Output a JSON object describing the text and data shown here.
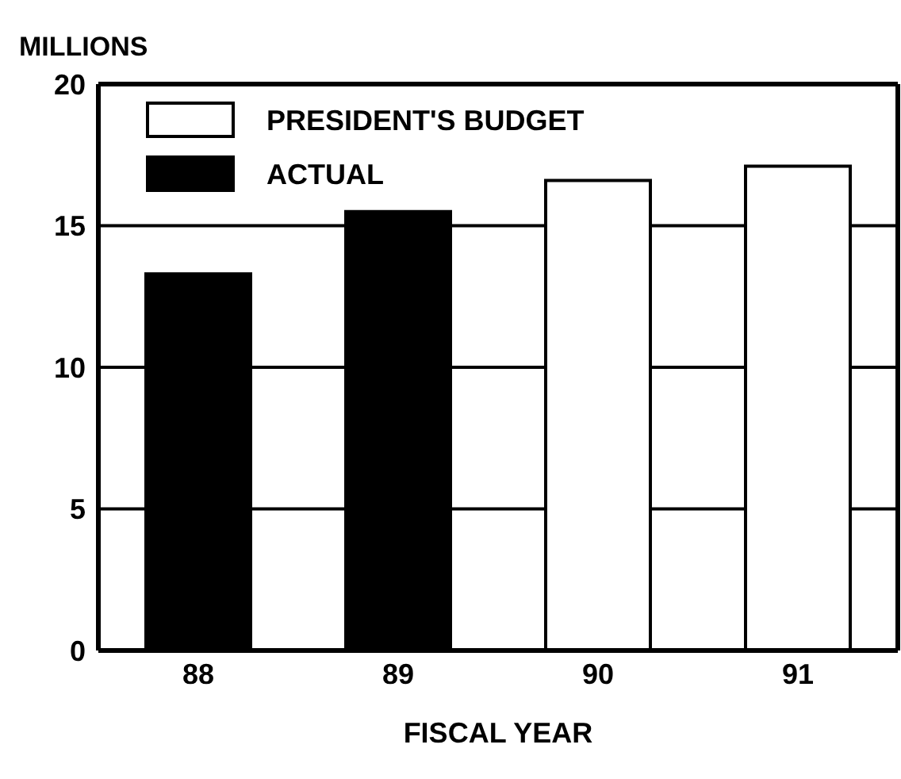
{
  "chart_data": {
    "type": "bar",
    "ylabel": "MILLIONS",
    "xlabel": "FISCAL YEAR",
    "categories": [
      "88",
      "89",
      "90",
      "91"
    ],
    "series": [
      {
        "name": "PRESIDENT'S BUDGET",
        "color": "#ffffff",
        "values": [
          null,
          null,
          16.6,
          17.1
        ]
      },
      {
        "name": "ACTUAL",
        "color": "#000000",
        "values": [
          13.3,
          15.5,
          null,
          null
        ]
      }
    ],
    "ylim": [
      0,
      20
    ],
    "yticks": [
      0,
      5,
      10,
      15,
      20
    ],
    "grid": "y",
    "legend": "top left"
  }
}
